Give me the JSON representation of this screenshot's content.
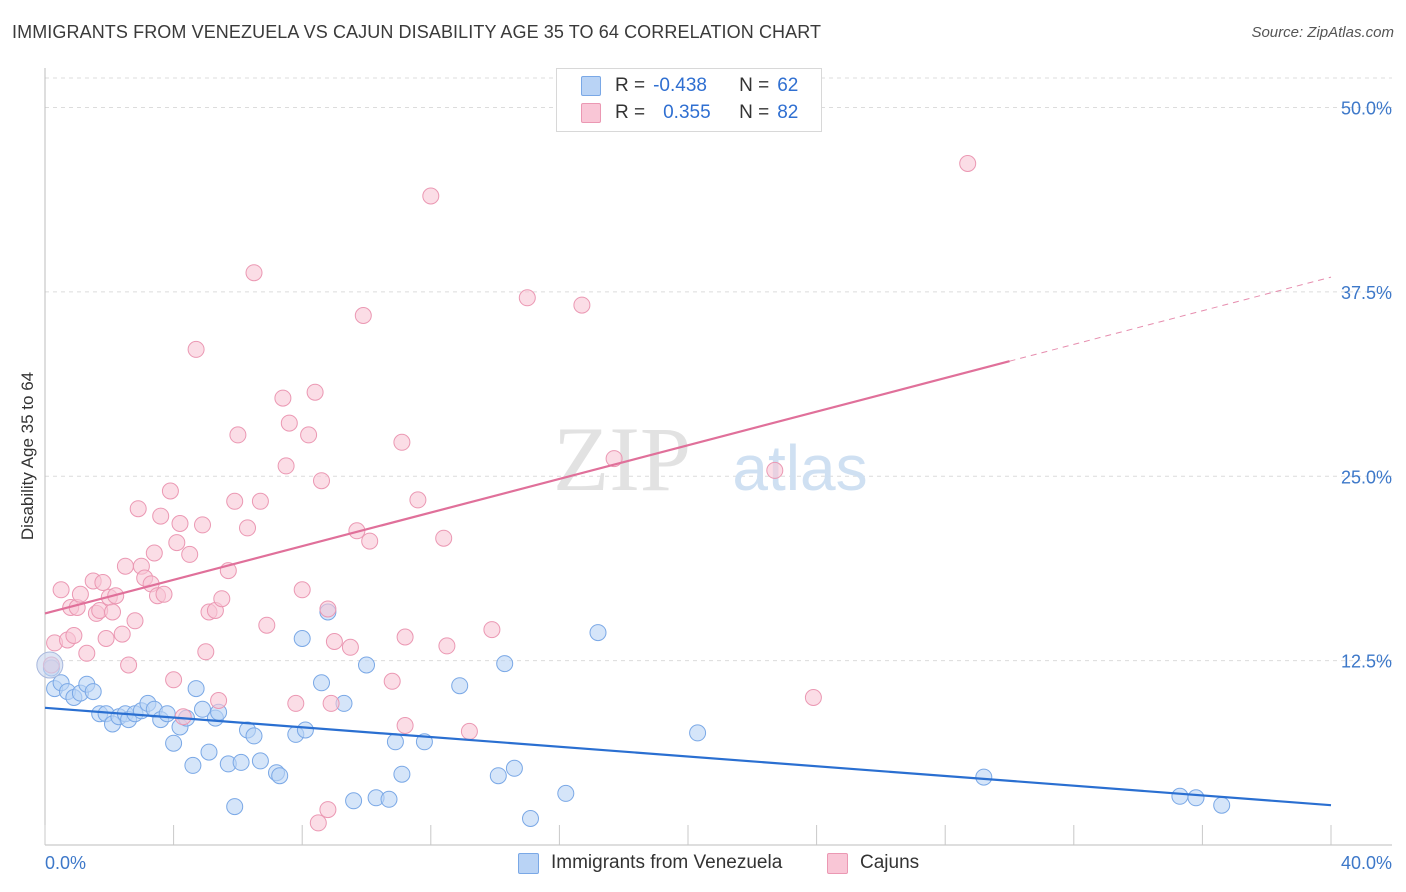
{
  "title": "IMMIGRANTS FROM VENEZUELA VS CAJUN DISABILITY AGE 35 TO 64 CORRELATION CHART",
  "source": "Source: ZipAtlas.com",
  "watermark": {
    "zip": "ZIP",
    "atlas": "atlas"
  },
  "legend_stats": [
    {
      "r_label": "R =",
      "r_value": "-0.438",
      "n_label": "N =",
      "n_value": "62",
      "fill": "#b9d3f5",
      "stroke": "#7aa8e6"
    },
    {
      "r_label": "R =",
      "r_value": "0.355",
      "n_label": "N =",
      "n_value": "82",
      "fill": "#f9c6d6",
      "stroke": "#eb98b3"
    }
  ],
  "chart_data": {
    "type": "scatter",
    "title": "IMMIGRANTS FROM VENEZUELA VS CAJUN DISABILITY AGE 35 TO 64 CORRELATION CHART",
    "xlabel": "",
    "ylabel": "Disability Age 35 to 64",
    "xlim": [
      0,
      40
    ],
    "ylim": [
      0,
      52
    ],
    "x_tick_labels": [
      "0.0%",
      "40.0%"
    ],
    "y_ticks": [
      12.5,
      25.0,
      37.5,
      50.0
    ],
    "y_tick_labels": [
      "12.5%",
      "25.0%",
      "37.5%",
      "50.0%"
    ],
    "grid": true,
    "series": [
      {
        "name": "Immigrants from Venezuela",
        "color": "#7aa8e6",
        "fill": "#b9d3f5",
        "line_color": "#2a6fd1",
        "trend": {
          "x": [
            0,
            40
          ],
          "y": [
            9.3,
            2.7
          ],
          "dashed_from": null
        },
        "points": [
          [
            0.2,
            12.0
          ],
          [
            0.3,
            10.6
          ],
          [
            0.5,
            11.0
          ],
          [
            0.7,
            10.4
          ],
          [
            0.9,
            10.0
          ],
          [
            1.1,
            10.3
          ],
          [
            1.3,
            10.9
          ],
          [
            1.5,
            10.4
          ],
          [
            1.7,
            8.9
          ],
          [
            1.9,
            8.9
          ],
          [
            2.1,
            8.2
          ],
          [
            2.3,
            8.7
          ],
          [
            2.5,
            8.9
          ],
          [
            2.6,
            8.5
          ],
          [
            2.8,
            8.9
          ],
          [
            3.0,
            9.1
          ],
          [
            3.2,
            9.6
          ],
          [
            3.4,
            9.2
          ],
          [
            3.6,
            8.5
          ],
          [
            3.8,
            8.9
          ],
          [
            4.0,
            6.9
          ],
          [
            4.2,
            8.0
          ],
          [
            4.4,
            8.6
          ],
          [
            4.6,
            5.4
          ],
          [
            4.7,
            10.6
          ],
          [
            4.9,
            9.2
          ],
          [
            5.1,
            6.3
          ],
          [
            5.3,
            8.6
          ],
          [
            5.4,
            9.0
          ],
          [
            5.7,
            5.5
          ],
          [
            5.9,
            2.6
          ],
          [
            6.1,
            5.6
          ],
          [
            6.3,
            7.8
          ],
          [
            6.5,
            7.4
          ],
          [
            6.7,
            5.7
          ],
          [
            7.2,
            4.9
          ],
          [
            7.3,
            4.7
          ],
          [
            7.8,
            7.5
          ],
          [
            8.0,
            14.0
          ],
          [
            8.1,
            7.8
          ],
          [
            8.6,
            11.0
          ],
          [
            8.8,
            15.8
          ],
          [
            9.3,
            9.6
          ],
          [
            9.6,
            3.0
          ],
          [
            10.0,
            12.2
          ],
          [
            10.3,
            3.2
          ],
          [
            10.7,
            3.1
          ],
          [
            10.9,
            7.0
          ],
          [
            11.1,
            4.8
          ],
          [
            11.8,
            7.0
          ],
          [
            12.9,
            10.8
          ],
          [
            14.1,
            4.7
          ],
          [
            14.3,
            12.3
          ],
          [
            14.6,
            5.2
          ],
          [
            15.1,
            1.8
          ],
          [
            16.2,
            3.5
          ],
          [
            17.2,
            14.4
          ],
          [
            20.3,
            7.6
          ],
          [
            29.2,
            4.6
          ],
          [
            35.3,
            3.3
          ],
          [
            35.8,
            3.2
          ],
          [
            36.6,
            2.7
          ]
        ]
      },
      {
        "name": "Cajuns",
        "color": "#eb98b3",
        "fill": "#f9c6d6",
        "line_color": "#e0709a",
        "trend": {
          "x": [
            0,
            40
          ],
          "y": [
            15.7,
            38.5
          ],
          "dashed_from": 30
        },
        "points": [
          [
            0.2,
            12.2
          ],
          [
            0.3,
            13.7
          ],
          [
            0.5,
            17.3
          ],
          [
            0.7,
            13.9
          ],
          [
            0.8,
            16.1
          ],
          [
            0.9,
            14.2
          ],
          [
            1.0,
            16.1
          ],
          [
            1.1,
            17.0
          ],
          [
            1.3,
            13.0
          ],
          [
            1.5,
            17.9
          ],
          [
            1.6,
            15.7
          ],
          [
            1.7,
            15.9
          ],
          [
            1.8,
            17.8
          ],
          [
            1.9,
            14.0
          ],
          [
            2.0,
            16.8
          ],
          [
            2.1,
            15.8
          ],
          [
            2.2,
            16.9
          ],
          [
            2.4,
            14.3
          ],
          [
            2.5,
            18.9
          ],
          [
            2.6,
            12.2
          ],
          [
            2.8,
            15.2
          ],
          [
            2.9,
            22.8
          ],
          [
            3.0,
            18.9
          ],
          [
            3.1,
            18.1
          ],
          [
            3.3,
            17.7
          ],
          [
            3.4,
            19.8
          ],
          [
            3.5,
            16.9
          ],
          [
            3.6,
            22.3
          ],
          [
            3.7,
            17.0
          ],
          [
            3.9,
            24.0
          ],
          [
            4.0,
            11.2
          ],
          [
            4.1,
            20.5
          ],
          [
            4.2,
            21.8
          ],
          [
            4.3,
            8.7
          ],
          [
            4.5,
            19.7
          ],
          [
            4.7,
            33.6
          ],
          [
            4.9,
            21.7
          ],
          [
            5.0,
            13.1
          ],
          [
            5.1,
            15.8
          ],
          [
            5.3,
            15.9
          ],
          [
            5.4,
            9.8
          ],
          [
            5.5,
            16.7
          ],
          [
            5.7,
            18.6
          ],
          [
            5.9,
            23.3
          ],
          [
            6.0,
            27.8
          ],
          [
            6.3,
            21.5
          ],
          [
            6.5,
            38.8
          ],
          [
            6.7,
            23.3
          ],
          [
            6.9,
            14.9
          ],
          [
            7.4,
            30.3
          ],
          [
            7.5,
            25.7
          ],
          [
            7.6,
            28.6
          ],
          [
            7.8,
            9.6
          ],
          [
            8.0,
            17.3
          ],
          [
            8.2,
            27.8
          ],
          [
            8.4,
            30.7
          ],
          [
            8.5,
            1.5
          ],
          [
            8.6,
            24.7
          ],
          [
            8.8,
            16.0
          ],
          [
            8.9,
            9.6
          ],
          [
            8.8,
            2.4
          ],
          [
            9.0,
            13.8
          ],
          [
            9.5,
            13.4
          ],
          [
            9.7,
            21.3
          ],
          [
            9.9,
            35.9
          ],
          [
            10.1,
            20.6
          ],
          [
            10.8,
            11.1
          ],
          [
            11.1,
            27.3
          ],
          [
            11.2,
            8.1
          ],
          [
            11.2,
            14.1
          ],
          [
            11.6,
            23.4
          ],
          [
            12.0,
            44.0
          ],
          [
            12.4,
            20.8
          ],
          [
            12.5,
            13.5
          ],
          [
            13.2,
            7.7
          ],
          [
            13.9,
            14.6
          ],
          [
            15.0,
            37.1
          ],
          [
            16.7,
            36.6
          ],
          [
            17.7,
            26.2
          ],
          [
            22.7,
            25.4
          ],
          [
            23.9,
            10.0
          ],
          [
            28.7,
            46.2
          ]
        ]
      }
    ]
  }
}
